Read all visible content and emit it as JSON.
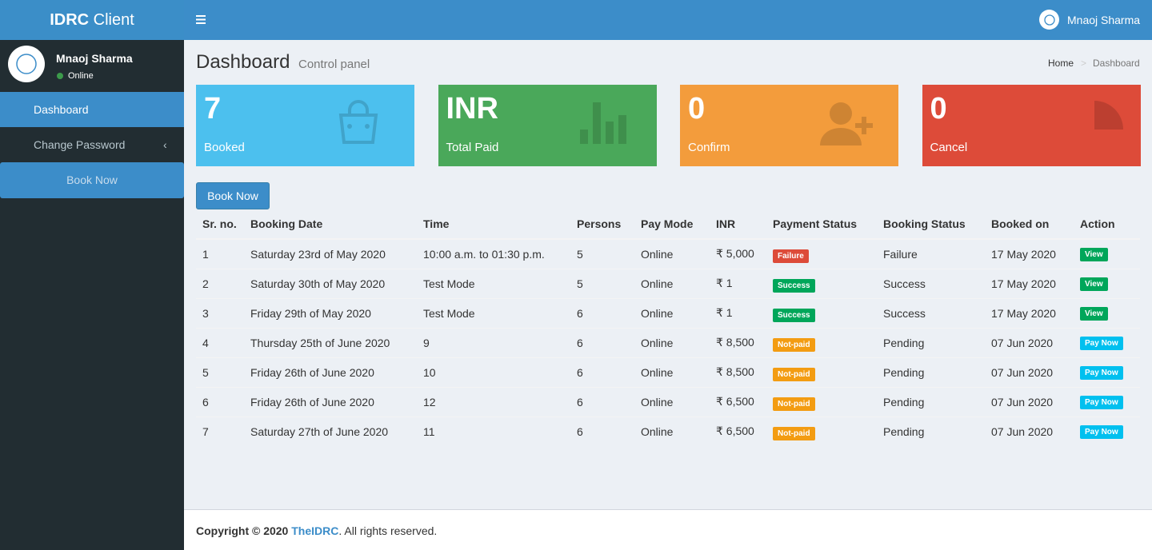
{
  "brand": {
    "bold": "IDRC",
    "light": "Client"
  },
  "user": {
    "name": "Mnaoj Sharma",
    "status": "Online"
  },
  "menu": [
    "Dashboard",
    "Change Password"
  ],
  "sidebar_button": "Book Now",
  "page": {
    "title": "Dashboard",
    "subtitle": "Control panel"
  },
  "breadcrumb": [
    "Home",
    "Dashboard"
  ],
  "boxes": [
    {
      "value": 7,
      "label": "Booked",
      "color": "#4cc0ee"
    },
    {
      "value": "INR",
      "label": "Total Paid",
      "color": "#4aa85a"
    },
    {
      "value": 0,
      "label": "Confirm",
      "color": "#f39c3c"
    },
    {
      "value": 0,
      "label": "Cancel",
      "color": "#dd4b39"
    }
  ],
  "book_button": "Book Now",
  "table": {
    "columns": [
      "Sr. no.",
      "Booking Date",
      "Time",
      "Persons",
      "Pay Mode",
      "INR",
      "Payment Status",
      "Booking Status",
      "Booked on",
      "Action"
    ],
    "rows": [
      [
        1,
        "Saturday 23rd of May 2020",
        "10:00 a.m. to 01:30 p.m.",
        5,
        "Online",
        "₹ 5,000",
        {
          "label": "Failure",
          "color": "#dd4b39"
        },
        "Failure",
        "17 May 2020",
        {
          "label": "View",
          "color": "#00a65a"
        }
      ],
      [
        2,
        "Saturday 30th of May 2020",
        "Test Mode",
        5,
        "Online",
        "₹ 1",
        {
          "label": "Success",
          "color": "#00a65a"
        },
        "Success",
        "17 May 2020",
        {
          "label": "View",
          "color": "#00a65a"
        }
      ],
      [
        3,
        "Friday 29th of May 2020",
        "Test Mode",
        6,
        "Online",
        "₹ 1",
        {
          "label": "Success",
          "color": "#00a65a"
        },
        "Success",
        "17 May 2020",
        {
          "label": "View",
          "color": "#00a65a"
        }
      ],
      [
        4,
        "Thursday 25th of June 2020",
        9,
        6,
        "Online",
        "₹ 8,500",
        {
          "label": "Not-paid",
          "color": "#f39c12"
        },
        "Pending",
        "07 Jun 2020",
        {
          "label": "Pay Now",
          "color": "#00c0ef"
        }
      ],
      [
        5,
        "Friday 26th of June 2020",
        10,
        6,
        "Online",
        "₹ 8,500",
        {
          "label": "Not-paid",
          "color": "#f39c12"
        },
        "Pending",
        "07 Jun 2020",
        {
          "label": "Pay Now",
          "color": "#00c0ef"
        }
      ],
      [
        6,
        "Friday 26th of June 2020",
        12,
        6,
        "Online",
        "₹ 6,500",
        {
          "label": "Not-paid",
          "color": "#f39c12"
        },
        "Pending",
        "07 Jun 2020",
        {
          "label": "Pay Now",
          "color": "#00c0ef"
        }
      ],
      [
        7,
        "Saturday 27th of June 2020",
        11,
        6,
        "Online",
        "₹ 6,500",
        {
          "label": "Not-paid",
          "color": "#f39c12"
        },
        "Pending",
        "07 Jun 2020",
        {
          "label": "Pay Now",
          "color": "#00c0ef"
        }
      ]
    ]
  },
  "footer": {
    "prefix": "Copyright © 2020",
    "link": "TheIDRC",
    "suffix": ". All rights reserved."
  }
}
